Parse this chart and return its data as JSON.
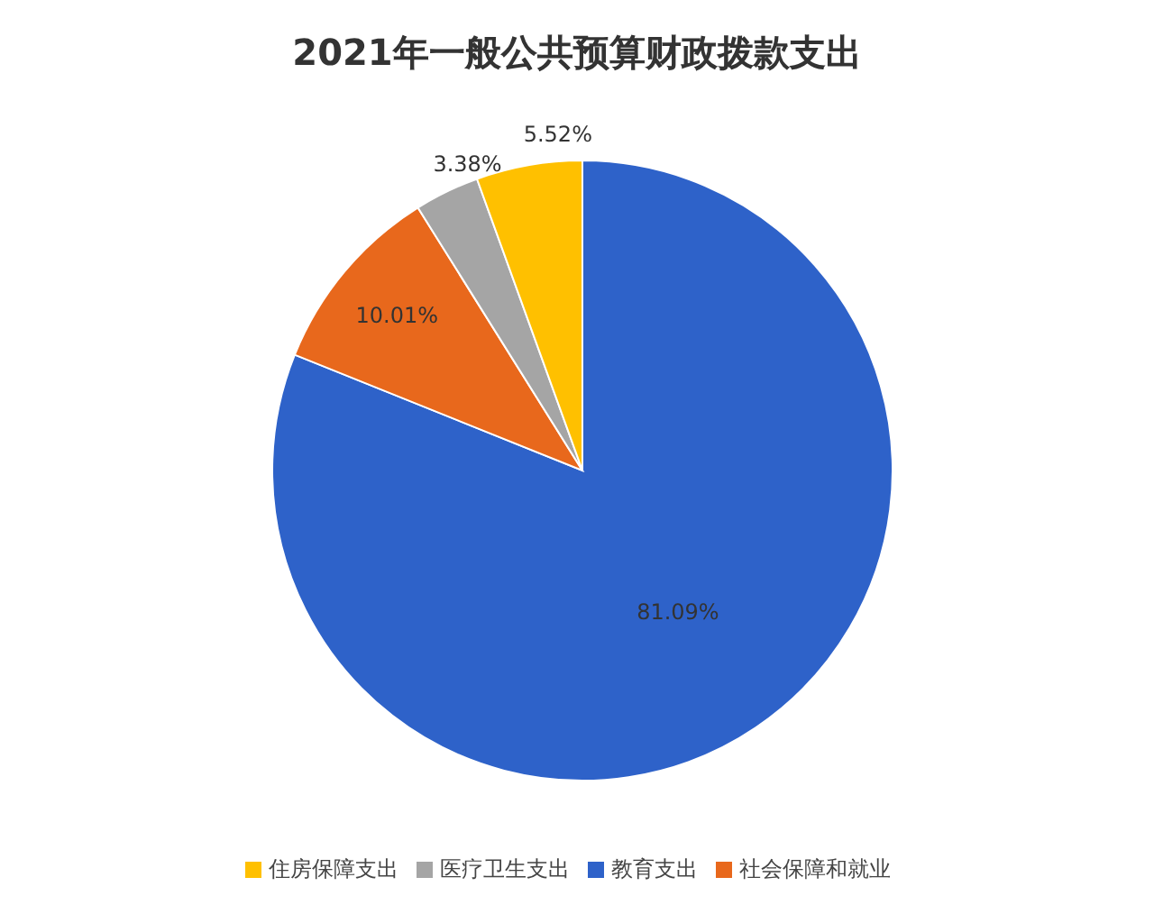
{
  "chart_data": {
    "type": "pie",
    "title": "2021年一般公共预算财政拨款支出",
    "categories": [
      "教育支出",
      "社会保障和就业",
      "医疗卫生支出",
      "住房保障支出"
    ],
    "values": [
      81.09,
      10.01,
      3.38,
      5.52
    ],
    "colors": [
      "#2e62c9",
      "#e8681c",
      "#a5a5a5",
      "#ffc000"
    ],
    "value_labels": [
      "81.09%",
      "10.01%",
      "3.38%",
      "5.52%"
    ],
    "legend": "bottom"
  }
}
